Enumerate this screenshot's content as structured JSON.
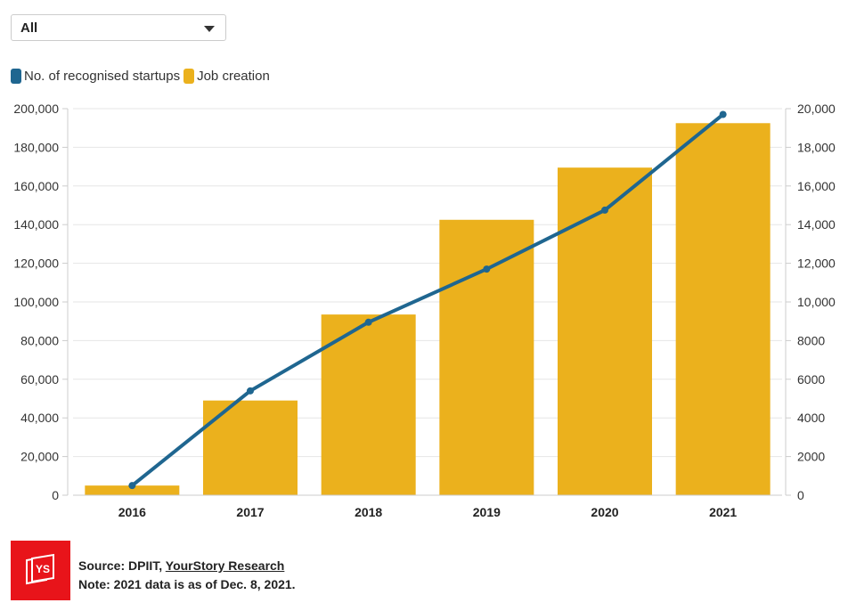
{
  "filter": {
    "selected": "All"
  },
  "legend": [
    {
      "label": "No. of recognised startups",
      "color": "#1f6690"
    },
    {
      "label": "Job creation",
      "color": "#ebb11d"
    }
  ],
  "chart_data": {
    "type": "bar+line",
    "categories": [
      "2016",
      "2017",
      "2018",
      "2019",
      "2020",
      "2021"
    ],
    "series": [
      {
        "name": "Job creation",
        "type": "bar",
        "axis": "left",
        "color": "#ebb11d",
        "values": [
          5000,
          49000,
          93500,
          142500,
          169500,
          192500
        ]
      },
      {
        "name": "No. of recognised startups",
        "type": "line",
        "axis": "right",
        "color": "#1f6690",
        "values": [
          500,
          5400,
          8950,
          11700,
          14750,
          19700
        ]
      }
    ],
    "left_axis": {
      "ylim": [
        0,
        200000
      ],
      "ticks": [
        0,
        20000,
        40000,
        60000,
        80000,
        100000,
        120000,
        140000,
        160000,
        180000,
        200000
      ],
      "tick_labels": [
        "0",
        "20,000",
        "40,000",
        "60,000",
        "80,000",
        "100,000",
        "120,000",
        "140,000",
        "160,000",
        "180,000",
        "200,000"
      ]
    },
    "right_axis": {
      "ylim": [
        0,
        20000
      ],
      "ticks": [
        0,
        2000,
        4000,
        6000,
        8000,
        10000,
        12000,
        14000,
        16000,
        18000,
        20000
      ],
      "tick_labels": [
        "0",
        "2000",
        "4000",
        "6000",
        "8000",
        "10,000",
        "12,000",
        "14,000",
        "16,000",
        "18,000",
        "20,000"
      ]
    },
    "grid": true,
    "legend_position": "top-left"
  },
  "footer": {
    "logo_text": "YS",
    "source_label": "Source: DPIIT, ",
    "source_link": "YourStory Research",
    "note": "Note: 2021 data is as of Dec. 8, 2021."
  }
}
